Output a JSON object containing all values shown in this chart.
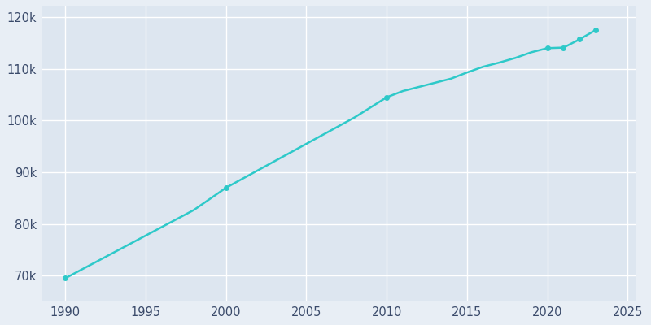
{
  "years": [
    1990,
    1991,
    1992,
    1993,
    1994,
    1995,
    1996,
    1997,
    1998,
    1999,
    2000,
    2001,
    2002,
    2003,
    2004,
    2005,
    2006,
    2007,
    2008,
    2009,
    2010,
    2011,
    2012,
    2013,
    2014,
    2015,
    2016,
    2017,
    2018,
    2019,
    2020,
    2021,
    2022,
    2023
  ],
  "population": [
    69496,
    71150,
    72800,
    74450,
    76100,
    77750,
    79400,
    81050,
    82700,
    84850,
    87000,
    88700,
    90400,
    92100,
    93800,
    95500,
    97200,
    98900,
    100600,
    102550,
    104500,
    105700,
    106500,
    107300,
    108100,
    109300,
    110400,
    111200,
    112100,
    113200,
    114000,
    114100,
    115700,
    117500
  ],
  "line_color": "#2ec9c9",
  "bg_color": "#e8eef5",
  "axes_bg_color": "#dde6f0",
  "grid_color": "#ffffff",
  "tick_color": "#3a4a6a",
  "marker_years": [
    1990,
    2000,
    2010,
    2020,
    2021,
    2022,
    2023
  ],
  "marker_populations": [
    69496,
    87000,
    104500,
    114000,
    114100,
    115700,
    117500
  ],
  "xlim": [
    1988.5,
    2025.5
  ],
  "ylim": [
    65000,
    122000
  ],
  "xticks": [
    1990,
    1995,
    2000,
    2005,
    2010,
    2015,
    2020,
    2025
  ],
  "yticks": [
    70000,
    80000,
    90000,
    100000,
    110000,
    120000
  ]
}
